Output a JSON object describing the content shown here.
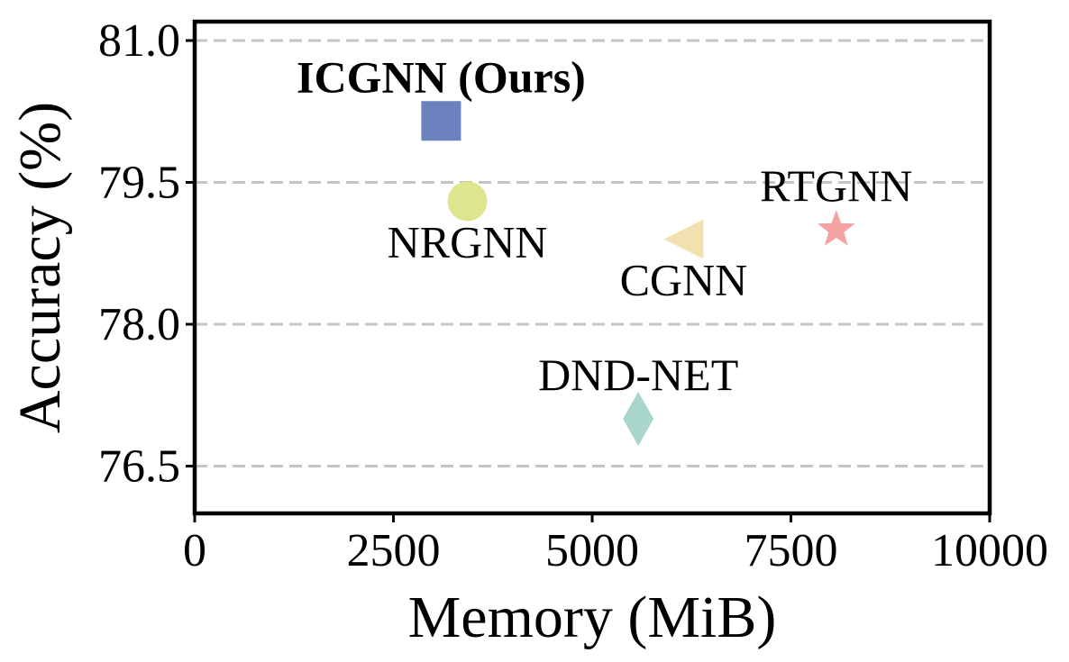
{
  "chart_data": {
    "type": "scatter",
    "title": "",
    "xlabel": "Memory (MiB)",
    "ylabel": "Accuracy (%)",
    "xlim": [
      0,
      10000
    ],
    "ylim": [
      76.0,
      81.2
    ],
    "x_ticks": [
      "0",
      "2500",
      "5000",
      "7500",
      "10000"
    ],
    "x_tick_values": [
      0,
      2500,
      5000,
      7500,
      10000
    ],
    "y_ticks": [
      "76.5",
      "78.0",
      "79.5",
      "81.0"
    ],
    "y_tick_values": [
      76.5,
      78.0,
      79.5,
      81.0
    ],
    "grid": "horizontal dashed",
    "points": [
      {
        "label": "ICGNN (Ours)",
        "x": 3100,
        "y": 80.15,
        "marker": "square",
        "color": "#6b82bf",
        "bold": true,
        "label_pos": "above"
      },
      {
        "label": "NRGNN",
        "x": 3430,
        "y": 79.3,
        "marker": "circle",
        "color": "#dde68f",
        "bold": false,
        "label_pos": "below"
      },
      {
        "label": "CGNN",
        "x": 6150,
        "y": 78.9,
        "marker": "triangle-left",
        "color": "#f3e0b0",
        "bold": false,
        "label_pos": "below"
      },
      {
        "label": "RTGNN",
        "x": 8070,
        "y": 79.0,
        "marker": "star",
        "color": "#f4a3a3",
        "bold": false,
        "label_pos": "above"
      },
      {
        "label": "DND-NET",
        "x": 5580,
        "y": 77.0,
        "marker": "diamond",
        "color": "#a9d6cc",
        "bold": false,
        "label_pos": "above"
      }
    ]
  }
}
